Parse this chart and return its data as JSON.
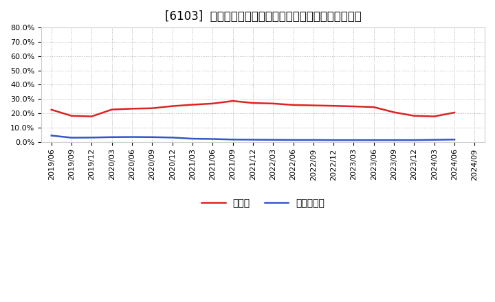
{
  "title": "[6103]  現預金、有利子負債の総資産に対する比率の推移",
  "ylim": [
    0.0,
    0.8
  ],
  "yticks": [
    0.0,
    0.1,
    0.2,
    0.3,
    0.4,
    0.5,
    0.6,
    0.7,
    0.8
  ],
  "ytick_labels": [
    "0.0%",
    "10.0%",
    "20.0%",
    "30.0%",
    "40.0%",
    "50.0%",
    "60.0%",
    "70.0%",
    "80.0%"
  ],
  "x_labels": [
    "2019/06",
    "2019/09",
    "2019/12",
    "2020/03",
    "2020/06",
    "2020/09",
    "2020/12",
    "2021/03",
    "2021/06",
    "2021/09",
    "2021/12",
    "2022/03",
    "2022/06",
    "2022/09",
    "2022/12",
    "2023/03",
    "2023/06",
    "2023/09",
    "2023/12",
    "2024/03",
    "2024/06",
    "2024/09"
  ],
  "cash_values": [
    0.225,
    0.182,
    0.178,
    0.226,
    0.232,
    0.235,
    0.25,
    0.26,
    0.268,
    0.286,
    0.272,
    0.268,
    0.258,
    0.255,
    0.252,
    0.248,
    0.243,
    0.207,
    0.182,
    0.178,
    0.205,
    null
  ],
  "debt_values": [
    0.044,
    0.029,
    0.03,
    0.033,
    0.034,
    0.033,
    0.03,
    0.022,
    0.02,
    0.016,
    0.015,
    0.014,
    0.013,
    0.013,
    0.012,
    0.012,
    0.012,
    0.012,
    0.012,
    0.014,
    0.016,
    null
  ],
  "cash_color": "#dd2222",
  "debt_color": "#3355cc",
  "background_color": "#ffffff",
  "plot_background": "#ffffff",
  "grid_color": "#aaaaaa",
  "legend_cash": "現預金",
  "legend_debt": "有利子負債",
  "title_fontsize": 12,
  "tick_fontsize": 8,
  "legend_fontsize": 10
}
